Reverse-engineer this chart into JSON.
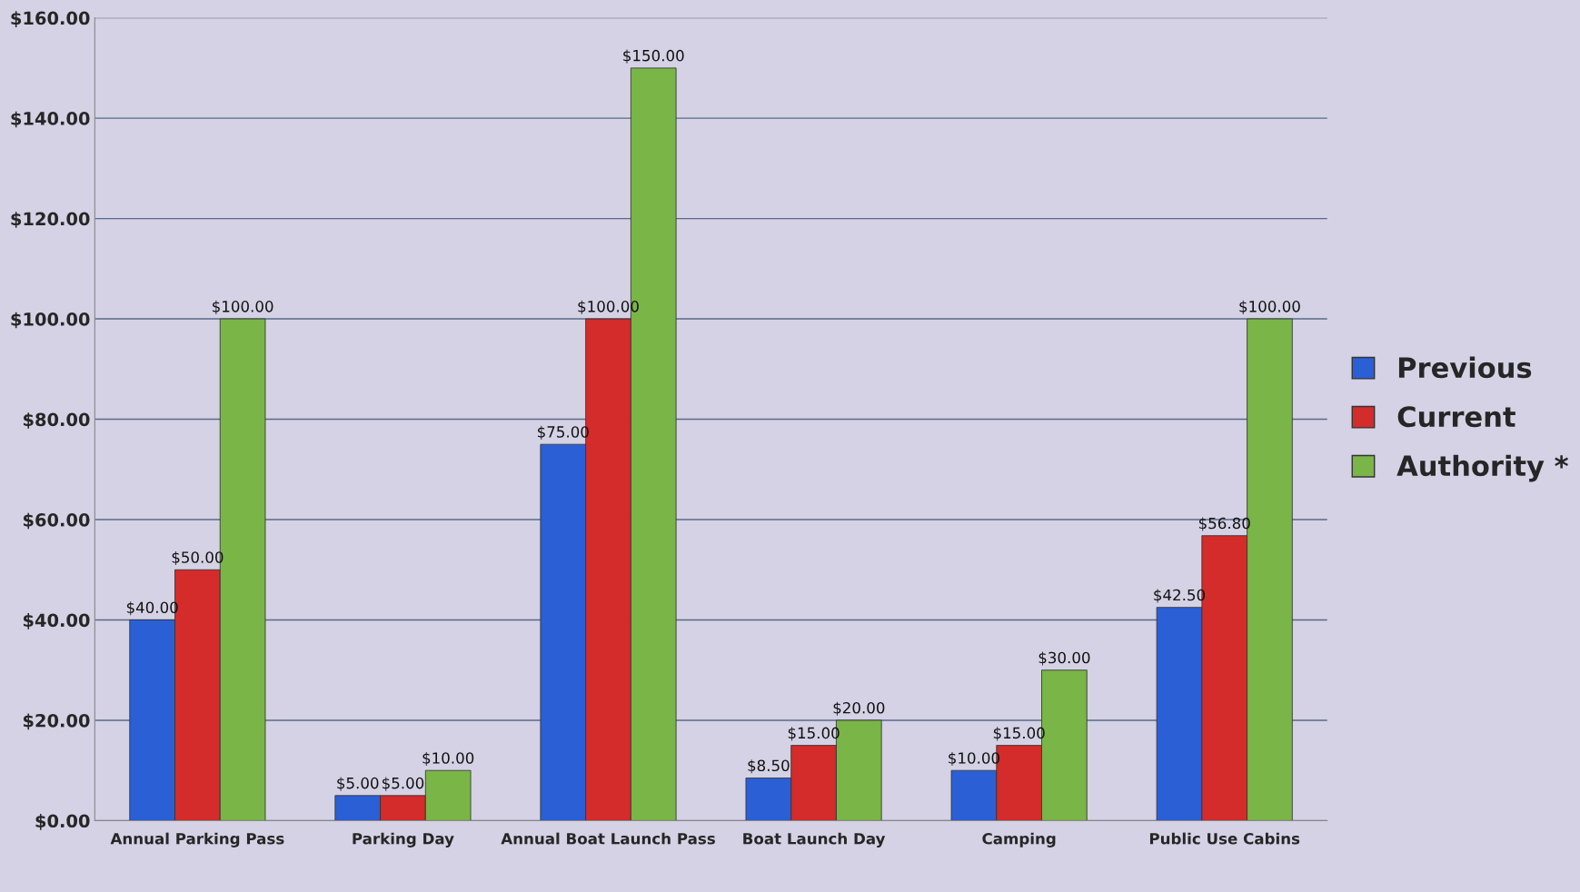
{
  "chart_data": {
    "type": "bar",
    "categories": [
      "Annual Parking Pass",
      "Parking Day",
      "Annual Boat Launch Pass",
      "Boat Launch Day",
      "Camping",
      "Public Use Cabins"
    ],
    "series": [
      {
        "name": "Previous",
        "color": "#2b5fd6",
        "values": [
          40,
          5,
          75,
          8.5,
          10,
          42.5
        ],
        "value_labels": [
          "$40.00",
          "$5.00",
          "$75.00",
          "$8.50",
          "$10.00",
          "$42.50"
        ]
      },
      {
        "name": "Current",
        "color": "#d42b2b",
        "values": [
          50,
          5,
          100,
          15,
          15,
          56.8
        ],
        "value_labels": [
          "$50.00",
          "$5.00",
          "$100.00",
          "$15.00",
          "$15.00",
          "$56.80"
        ]
      },
      {
        "name": "Authority *",
        "color": "#7ab547",
        "values": [
          100,
          10,
          150,
          20,
          30,
          100
        ],
        "value_labels": [
          "$100.00",
          "$10.00",
          "$150.00",
          "$20.00",
          "$30.00",
          "$100.00"
        ]
      }
    ],
    "ylim": [
      0,
      160
    ],
    "yticks": [
      {
        "value": 0,
        "label": "$0.00"
      },
      {
        "value": 20,
        "label": "$20.00"
      },
      {
        "value": 40,
        "label": "$40.00"
      },
      {
        "value": 60,
        "label": "$60.00"
      },
      {
        "value": 80,
        "label": "$80.00"
      },
      {
        "value": 100,
        "label": "$100.00"
      },
      {
        "value": 120,
        "label": "$120.00"
      },
      {
        "value": 140,
        "label": "$140.00"
      },
      {
        "value": 160,
        "label": "$160.00"
      }
    ],
    "grid": "y",
    "legend": "right"
  }
}
